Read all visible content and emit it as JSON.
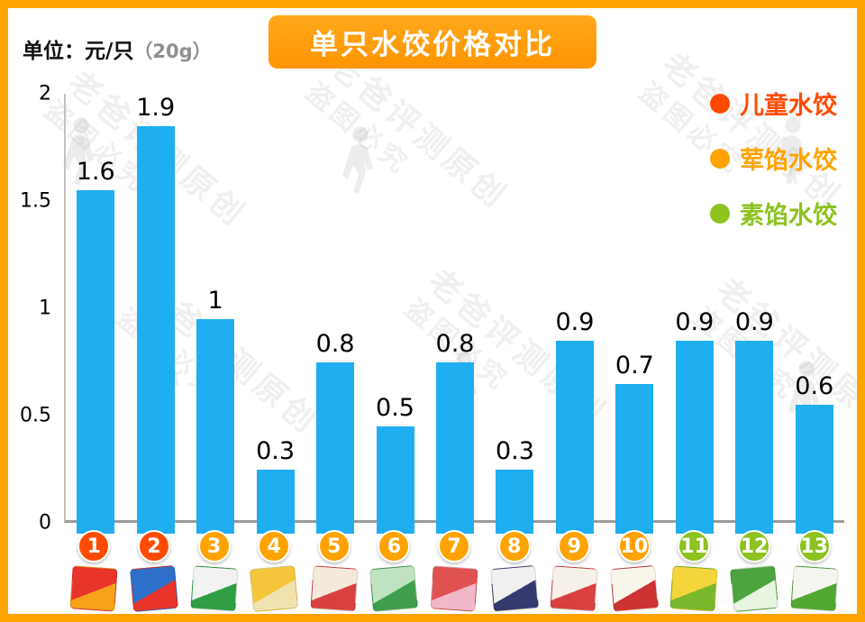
{
  "title": "单只水饺价格对比",
  "unit": {
    "label": "单位：元/只",
    "note": "（20g）"
  },
  "legend": [
    {
      "key": "children",
      "label": "儿童水饺",
      "color": "#FF4B00"
    },
    {
      "key": "meat",
      "label": "荤馅水饺",
      "color": "#FFA300"
    },
    {
      "key": "veg",
      "label": "素馅水饺",
      "color": "#8DC21F"
    }
  ],
  "chart_data": {
    "type": "bar",
    "title": "单只水饺价格对比",
    "ylabel": "元/只 (20g)",
    "ylim": [
      0,
      2
    ],
    "yticks": [
      0,
      0.5,
      1,
      1.5,
      2
    ],
    "categories": [
      "1",
      "2",
      "3",
      "4",
      "5",
      "6",
      "7",
      "8",
      "9",
      "10",
      "11",
      "12",
      "13"
    ],
    "values": [
      1.6,
      1.9,
      1,
      0.3,
      0.8,
      0.5,
      0.8,
      0.3,
      0.9,
      0.7,
      0.9,
      0.9,
      0.6
    ],
    "category_groups": [
      "children",
      "children",
      "meat",
      "meat",
      "meat",
      "meat",
      "meat",
      "meat",
      "meat",
      "meat",
      "veg",
      "veg",
      "veg"
    ],
    "bar_color": "#1FAEF0",
    "grid": false,
    "legend_position": "top-right"
  },
  "watermark": {
    "lines": [
      "老爸评测原创",
      "盗图必究"
    ]
  },
  "products": [
    {
      "colors": [
        "#e8342a",
        "#f7a21b"
      ]
    },
    {
      "colors": [
        "#2e6fca",
        "#e8342a"
      ]
    },
    {
      "colors": [
        "#f2f2f2",
        "#2f9e44"
      ]
    },
    {
      "colors": [
        "#f5c63c",
        "#f0e3b0"
      ]
    },
    {
      "colors": [
        "#f5e9dc",
        "#d94040"
      ]
    },
    {
      "colors": [
        "#bfe3c0",
        "#3f9e4d"
      ]
    },
    {
      "colors": [
        "#e05252",
        "#f0b8c8"
      ]
    },
    {
      "colors": [
        "#f0f0f0",
        "#343a6e"
      ]
    },
    {
      "colors": [
        "#f5f0e8",
        "#d94040"
      ]
    },
    {
      "colors": [
        "#faf5ea",
        "#cc3333"
      ]
    },
    {
      "colors": [
        "#f5d53c",
        "#7ab82e"
      ]
    },
    {
      "colors": [
        "#4da33f",
        "#e8f5e0"
      ]
    },
    {
      "colors": [
        "#f5f5f0",
        "#52a832"
      ]
    }
  ]
}
